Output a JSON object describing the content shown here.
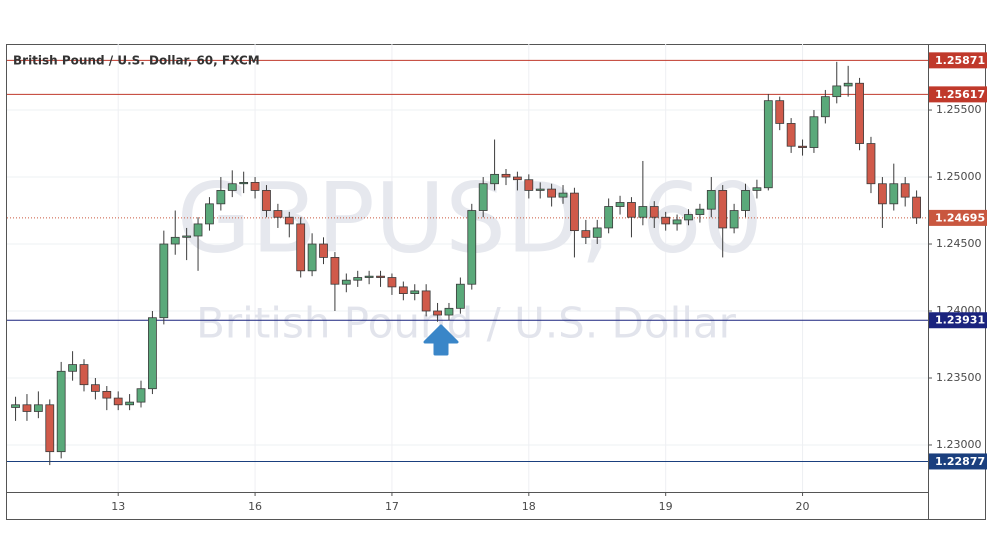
{
  "chart_data": {
    "type": "candlestick",
    "title": "British Pound / U.S. Dollar, 60, FXCM",
    "watermark": "GBPUSD, 60",
    "watermark_subtitle": "British Pound / U.S. Dollar",
    "xlim": [
      -1.5,
      160
    ],
    "xticks": [
      {
        "value": 18,
        "label": "13"
      },
      {
        "value": 42,
        "label": "16"
      },
      {
        "value": 66,
        "label": "17"
      },
      {
        "value": 90,
        "label": "18"
      },
      {
        "value": 114,
        "label": "19"
      },
      {
        "value": 138,
        "label": "20"
      }
    ],
    "ylim": [
      1.22649,
      1.25993
    ],
    "yticks": [
      {
        "value": 1.23,
        "label": "1.23000"
      },
      {
        "value": 1.235,
        "label": "1.23500"
      },
      {
        "value": 1.24,
        "label": "1.24000"
      },
      {
        "value": 1.245,
        "label": "1.24500"
      },
      {
        "value": 1.25,
        "label": "1.25000"
      },
      {
        "value": 1.255,
        "label": "1.25500"
      }
    ],
    "grid": true,
    "up_color": "#5aa97a",
    "down_color": "#d05a4a",
    "levels": [
      {
        "value": 1.25871,
        "color": "#c0392b",
        "style": "solid"
      },
      {
        "value": 1.25617,
        "color": "#c0392b",
        "style": "solid"
      },
      {
        "value": 1.24695,
        "color": "#c9573f",
        "style": "dotted"
      },
      {
        "value": 1.23931,
        "color": "#1a237e",
        "style": "solid"
      },
      {
        "value": 1.22877,
        "color": "#1a3f7e",
        "style": "solid"
      }
    ],
    "x": [
      0,
      2,
      4,
      6,
      8,
      10,
      12,
      14,
      16,
      18,
      20,
      22,
      24,
      26,
      28,
      30,
      32,
      34,
      36,
      38,
      40,
      42,
      44,
      46,
      48,
      50,
      52,
      54,
      56,
      58,
      60,
      62,
      64,
      66,
      68,
      70,
      72,
      74,
      76,
      78,
      80,
      82,
      84,
      86,
      88,
      90,
      92,
      94,
      96,
      98,
      100,
      102,
      104,
      106,
      108,
      110,
      112,
      114,
      116,
      118,
      120,
      122,
      124,
      126,
      128,
      130,
      132,
      134,
      136,
      138,
      140,
      142,
      144,
      146,
      148,
      150,
      152,
      154,
      156,
      158
    ],
    "open": [
      1.2328,
      1.233,
      1.2325,
      1.233,
      1.2295,
      1.2355,
      1.236,
      1.2345,
      1.234,
      1.2335,
      1.233,
      1.2332,
      1.2342,
      1.2395,
      1.245,
      1.2455,
      1.2456,
      1.2465,
      1.248,
      1.249,
      1.2495,
      1.2496,
      1.249,
      1.2475,
      1.247,
      1.2465,
      1.243,
      1.245,
      1.244,
      1.242,
      1.2423,
      1.2425,
      1.2426,
      1.2425,
      1.2418,
      1.2413,
      1.2415,
      1.24,
      1.2397,
      1.2402,
      1.242,
      1.2475,
      1.2495,
      1.2502,
      1.25,
      1.2498,
      1.249,
      1.2491,
      1.2485,
      1.2488,
      1.246,
      1.2455,
      1.2462,
      1.2478,
      1.2481,
      1.247,
      1.2478,
      1.247,
      1.2465,
      1.2468,
      1.2472,
      1.2476,
      1.249,
      1.2462,
      1.2475,
      1.249,
      1.2492,
      1.2557,
      1.254,
      1.2523,
      1.2522,
      1.2545,
      1.256,
      1.2568,
      1.257,
      1.2525,
      1.2495,
      1.248,
      1.2495,
      1.2485
    ],
    "high": [
      1.2336,
      1.2338,
      1.234,
      1.2334,
      1.2362,
      1.237,
      1.2364,
      1.235,
      1.2344,
      1.234,
      1.2338,
      1.2348,
      1.24,
      1.246,
      1.2475,
      1.2462,
      1.247,
      1.2485,
      1.25,
      1.2505,
      1.2504,
      1.25,
      1.2494,
      1.248,
      1.2474,
      1.247,
      1.2458,
      1.2455,
      1.2444,
      1.2428,
      1.243,
      1.243,
      1.243,
      1.2428,
      1.2422,
      1.242,
      1.242,
      1.2406,
      1.2406,
      1.2425,
      1.248,
      1.25,
      1.2528,
      1.2506,
      1.2504,
      1.2502,
      1.2496,
      1.2495,
      1.2494,
      1.2492,
      1.2468,
      1.2468,
      1.2484,
      1.2486,
      1.2485,
      1.2512,
      1.2482,
      1.2474,
      1.2472,
      1.2476,
      1.248,
      1.25,
      1.2494,
      1.248,
      1.2495,
      1.2498,
      1.2562,
      1.256,
      1.2544,
      1.2528,
      1.255,
      1.2565,
      1.2586,
      1.2583,
      1.2574,
      1.253,
      1.25,
      1.251,
      1.25,
      1.249
    ],
    "low": [
      1.2318,
      1.2318,
      1.232,
      1.2285,
      1.229,
      1.2348,
      1.234,
      1.2334,
      1.2326,
      1.2326,
      1.2326,
      1.2328,
      1.2338,
      1.239,
      1.2442,
      1.2438,
      1.243,
      1.246,
      1.2475,
      1.2485,
      1.2488,
      1.2484,
      1.247,
      1.2462,
      1.2455,
      1.2425,
      1.2426,
      1.2435,
      1.24,
      1.2414,
      1.2418,
      1.242,
      1.2418,
      1.2412,
      1.2408,
      1.2408,
      1.2396,
      1.2392,
      1.2393,
      1.2398,
      1.2416,
      1.247,
      1.249,
      1.2494,
      1.249,
      1.2484,
      1.2484,
      1.2478,
      1.248,
      1.244,
      1.245,
      1.245,
      1.2458,
      1.2472,
      1.2455,
      1.2464,
      1.2462,
      1.246,
      1.246,
      1.2464,
      1.2466,
      1.247,
      1.244,
      1.2458,
      1.247,
      1.2484,
      1.249,
      1.2535,
      1.2518,
      1.2516,
      1.2518,
      1.254,
      1.2555,
      1.256,
      1.252,
      1.2488,
      1.2462,
      1.2475,
      1.2478,
      1.2465
    ],
    "close": [
      1.233,
      1.2325,
      1.233,
      1.2295,
      1.2355,
      1.236,
      1.2345,
      1.234,
      1.2335,
      1.233,
      1.2332,
      1.2342,
      1.2395,
      1.245,
      1.2455,
      1.2456,
      1.2465,
      1.248,
      1.249,
      1.2495,
      1.2496,
      1.249,
      1.2475,
      1.247,
      1.2465,
      1.243,
      1.245,
      1.244,
      1.242,
      1.2423,
      1.2425,
      1.2426,
      1.2425,
      1.2418,
      1.2413,
      1.2415,
      1.24,
      1.2397,
      1.2402,
      1.242,
      1.2475,
      1.2495,
      1.2502,
      1.25,
      1.2498,
      1.249,
      1.2491,
      1.2485,
      1.2488,
      1.246,
      1.2455,
      1.2462,
      1.2478,
      1.2481,
      1.247,
      1.2478,
      1.247,
      1.2465,
      1.2468,
      1.2472,
      1.2476,
      1.249,
      1.2462,
      1.2475,
      1.249,
      1.2492,
      1.2557,
      1.254,
      1.2523,
      1.2522,
      1.2545,
      1.256,
      1.2568,
      1.257,
      1.2525,
      1.2495,
      1.248,
      1.2495,
      1.2485,
      1.24695
    ]
  }
}
